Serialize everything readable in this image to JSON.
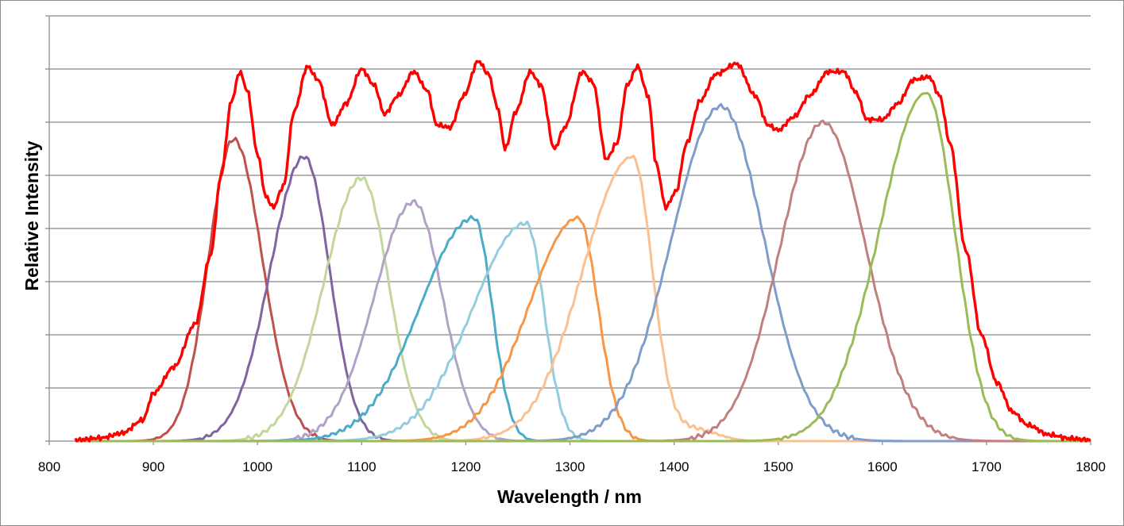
{
  "chart_data": {
    "type": "line",
    "title": "",
    "xlabel": "Wavelength / nm",
    "ylabel": "Relative Intensity",
    "xlim": [
      800,
      1800
    ],
    "ylim": [
      0,
      8
    ],
    "x_ticks": [
      800,
      900,
      1000,
      1100,
      1200,
      1300,
      1400,
      1500,
      1600,
      1700,
      1800
    ],
    "x_tick_labels": [
      "800",
      "900",
      "1000",
      "1100",
      "1200",
      "1300",
      "1400",
      "1500",
      "1600",
      "1700",
      "1800"
    ],
    "y_gridlines": [
      1,
      2,
      3,
      4,
      5,
      6,
      7,
      8
    ],
    "y_tick_labels_shown": false,
    "grid": true,
    "legend": "none",
    "series": [
      {
        "color": "#c0504d",
        "peak_x": 977,
        "peak_y": 5.68,
        "left_width": 28,
        "right_width": 32,
        "tail": 0.0
      },
      {
        "color": "#8064a2",
        "peak_x": 1045,
        "peak_y": 5.35,
        "left_width": 38,
        "right_width": 28,
        "tail": 0.0
      },
      {
        "color": "#c3d69b",
        "peak_x": 1100,
        "peak_y": 4.95,
        "left_width": 42,
        "right_width": 30,
        "tail": 0.0
      },
      {
        "color": "#b3a2c7",
        "peak_x": 1150,
        "peak_y": 4.5,
        "left_width": 44,
        "right_width": 32,
        "tail": 0.0
      },
      {
        "color": "#4bacc6",
        "peak_x": 1208,
        "peak_y": 4.2,
        "left_width": 60,
        "right_width": 20,
        "tail": 0.0
      },
      {
        "color": "#93cddd",
        "peak_x": 1258,
        "peak_y": 4.1,
        "left_width": 60,
        "right_width": 20,
        "tail": 0.0
      },
      {
        "color": "#f79646",
        "peak_x": 1308,
        "peak_y": 4.2,
        "left_width": 55,
        "right_width": 22,
        "tail": 0.0
      },
      {
        "color": "#fac090",
        "peak_x": 1360,
        "peak_y": 5.35,
        "left_width": 55,
        "right_width": 22,
        "tail": 0.22
      },
      {
        "color": "#7f9ccb",
        "peak_x": 1445,
        "peak_y": 6.3,
        "left_width": 55,
        "right_width": 48,
        "tail": 0.0
      },
      {
        "color": "#c0807e",
        "peak_x": 1543,
        "peak_y": 6.0,
        "left_width": 48,
        "right_width": 48,
        "tail": 0.0
      },
      {
        "color": "#9bbb59",
        "peak_x": 1642,
        "peak_y": 6.55,
        "left_width": 52,
        "right_width": 32,
        "tail": 0.0
      }
    ],
    "envelope": {
      "color": "#ff0000",
      "points": [
        [
          825,
          0.02
        ],
        [
          850,
          0.06
        ],
        [
          870,
          0.15
        ],
        [
          890,
          0.4
        ],
        [
          900,
          0.9
        ],
        [
          920,
          1.4
        ],
        [
          940,
          2.2
        ],
        [
          955,
          3.5
        ],
        [
          965,
          5.0
        ],
        [
          975,
          6.4
        ],
        [
          983,
          6.95
        ],
        [
          990,
          6.6
        ],
        [
          1000,
          5.4
        ],
        [
          1008,
          4.6
        ],
        [
          1015,
          4.4
        ],
        [
          1025,
          4.8
        ],
        [
          1035,
          6.2
        ],
        [
          1048,
          7.05
        ],
        [
          1058,
          6.8
        ],
        [
          1072,
          5.95
        ],
        [
          1085,
          6.35
        ],
        [
          1100,
          7.0
        ],
        [
          1112,
          6.7
        ],
        [
          1122,
          6.15
        ],
        [
          1135,
          6.5
        ],
        [
          1150,
          6.95
        ],
        [
          1163,
          6.6
        ],
        [
          1172,
          5.95
        ],
        [
          1185,
          5.9
        ],
        [
          1198,
          6.5
        ],
        [
          1212,
          7.15
        ],
        [
          1222,
          6.9
        ],
        [
          1230,
          6.3
        ],
        [
          1238,
          5.5
        ],
        [
          1248,
          6.2
        ],
        [
          1262,
          6.95
        ],
        [
          1272,
          6.7
        ],
        [
          1285,
          5.5
        ],
        [
          1295,
          5.9
        ],
        [
          1312,
          6.95
        ],
        [
          1322,
          6.75
        ],
        [
          1335,
          5.3
        ],
        [
          1345,
          5.6
        ],
        [
          1355,
          6.7
        ],
        [
          1365,
          7.05
        ],
        [
          1375,
          6.5
        ],
        [
          1383,
          5.2
        ],
        [
          1392,
          4.4
        ],
        [
          1402,
          4.7
        ],
        [
          1412,
          5.6
        ],
        [
          1425,
          6.4
        ],
        [
          1440,
          6.9
        ],
        [
          1460,
          7.1
        ],
        [
          1478,
          6.5
        ],
        [
          1490,
          5.95
        ],
        [
          1500,
          5.85
        ],
        [
          1515,
          6.1
        ],
        [
          1530,
          6.5
        ],
        [
          1548,
          6.95
        ],
        [
          1563,
          6.95
        ],
        [
          1575,
          6.55
        ],
        [
          1585,
          6.05
        ],
        [
          1600,
          6.05
        ],
        [
          1615,
          6.35
        ],
        [
          1630,
          6.8
        ],
        [
          1645,
          6.85
        ],
        [
          1655,
          6.5
        ],
        [
          1665,
          5.6
        ],
        [
          1680,
          3.6
        ],
        [
          1695,
          2.0
        ],
        [
          1710,
          1.1
        ],
        [
          1725,
          0.55
        ],
        [
          1740,
          0.3
        ],
        [
          1760,
          0.12
        ],
        [
          1780,
          0.05
        ],
        [
          1800,
          0.02
        ]
      ]
    }
  }
}
